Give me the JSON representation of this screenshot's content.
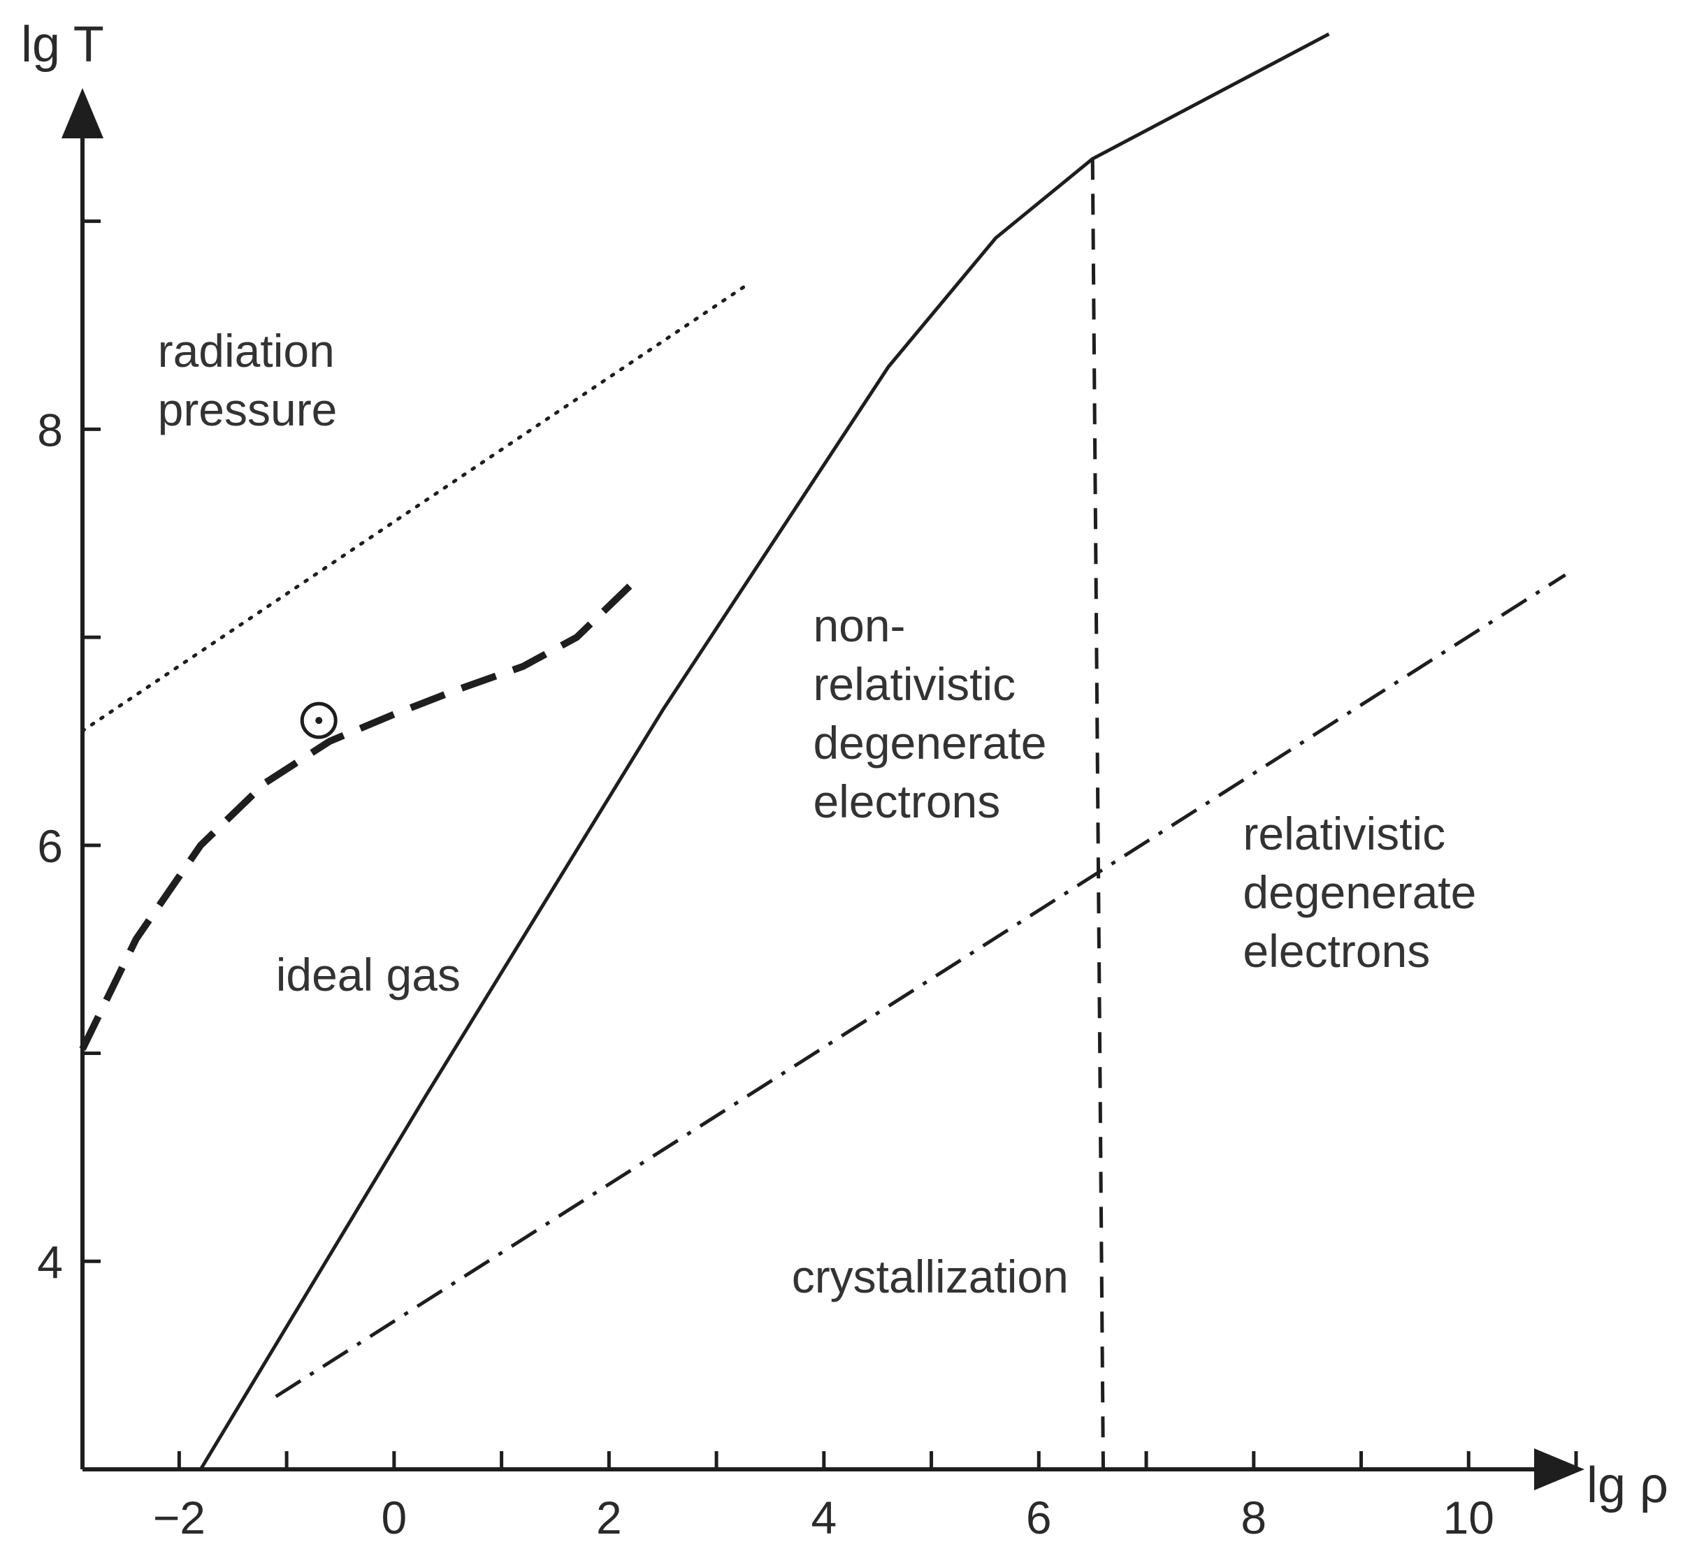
{
  "chart_data": {
    "type": "line",
    "xlabel": "lg ρ",
    "ylabel": "lg T",
    "xlim": [
      -2.9,
      11.0
    ],
    "ylim": [
      3.0,
      9.6
    ],
    "x_ticks": [
      -2,
      0,
      2,
      4,
      6,
      8,
      10
    ],
    "x_tick_labels": [
      "−2",
      "0",
      "2",
      "4",
      "6",
      "8",
      "10"
    ],
    "y_ticks": [
      4,
      6,
      8
    ],
    "y_tick_labels": [
      "4",
      "6",
      "8"
    ],
    "grid": false,
    "series": [
      {
        "style": "dotted",
        "points": [
          [
            -2.9,
            6.55
          ],
          [
            3.3,
            8.7
          ]
        ]
      },
      {
        "style": "long-dashed",
        "points": [
          [
            -2.9,
            5.02
          ],
          [
            -2.4,
            5.55
          ],
          [
            -1.8,
            6.0
          ],
          [
            -1.2,
            6.3
          ],
          [
            -0.6,
            6.5
          ],
          [
            0,
            6.63
          ],
          [
            0.6,
            6.75
          ],
          [
            1.2,
            6.86
          ],
          [
            1.7,
            7.0
          ],
          [
            2.2,
            7.25
          ]
        ]
      },
      {
        "style": "solid",
        "points": [
          [
            -1.8,
            3.0
          ],
          [
            0.3,
            4.8
          ],
          [
            2.5,
            6.65
          ],
          [
            4.6,
            8.3
          ],
          [
            5.6,
            8.92
          ],
          [
            6.5,
            9.3
          ],
          [
            8.7,
            9.9
          ]
        ]
      },
      {
        "style": "dashed",
        "points": [
          [
            6.5,
            9.3
          ],
          [
            6.6,
            3.0
          ]
        ]
      },
      {
        "style": "dash-dot",
        "points": [
          [
            -1.1,
            3.35
          ],
          [
            10.9,
            7.3
          ]
        ]
      }
    ],
    "markers": [
      {
        "symbol": "☉",
        "x": -0.7,
        "y": 6.6
      }
    ],
    "annotations": [
      {
        "lines": [
          "radiation",
          "pressure"
        ],
        "x": -2.2,
        "y": 8.3
      },
      {
        "lines": [
          "ideal gas"
        ],
        "x": -1.1,
        "y": 5.3
      },
      {
        "lines": [
          "non-",
          "relativistic",
          "degenerate",
          "electrons"
        ],
        "x": 3.9,
        "y": 6.98
      },
      {
        "lines": [
          "relativistic",
          "degenerate",
          "electrons"
        ],
        "x": 7.9,
        "y": 5.98
      },
      {
        "lines": [
          "crystallization"
        ],
        "x": 3.7,
        "y": 3.85
      }
    ]
  }
}
